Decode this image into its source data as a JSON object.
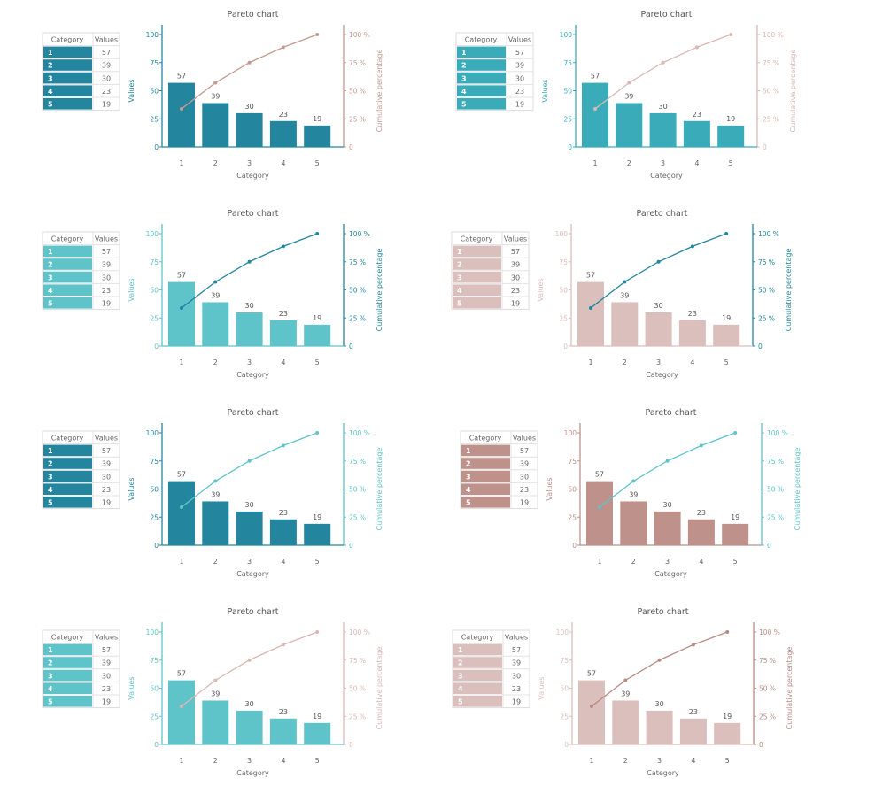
{
  "chart_data": [
    {
      "type": "bar+line",
      "title": "Pareto chart",
      "xlabel": "Category",
      "ylabel": "Values",
      "y2label": "Cumulative percentage",
      "categories": [
        "1",
        "2",
        "3",
        "4",
        "5"
      ],
      "values": [
        57,
        39,
        30,
        23,
        19
      ],
      "cumulative_percent": [
        33.9,
        57.1,
        75.0,
        88.7,
        100
      ],
      "ylim": [
        0,
        100
      ],
      "y2lim": [
        0,
        100
      ],
      "yticks": [
        "0",
        "25",
        "50",
        "75",
        "100"
      ],
      "y2ticks": [
        "0",
        "25 %",
        "50 %",
        "75 %",
        "100 %"
      ],
      "table_headers": [
        "Category",
        "Values"
      ],
      "bar_color": "#23869e",
      "line_color": "#c49a90"
    },
    {
      "type": "bar+line",
      "title": "Pareto chart",
      "xlabel": "Category",
      "ylabel": "Values",
      "y2label": "Cumulative percentage",
      "categories": [
        "1",
        "2",
        "3",
        "4",
        "5"
      ],
      "values": [
        57,
        39,
        30,
        23,
        19
      ],
      "cumulative_percent": [
        33.9,
        57.1,
        75.0,
        88.7,
        100
      ],
      "ylim": [
        0,
        100
      ],
      "y2lim": [
        0,
        100
      ],
      "yticks": [
        "0",
        "25",
        "50",
        "75",
        "100"
      ],
      "y2ticks": [
        "0",
        "25 %",
        "50 %",
        "75 %",
        "100 %"
      ],
      "table_headers": [
        "Category",
        "Values"
      ],
      "bar_color": "#3aabb8",
      "line_color": "#dbb8b3"
    },
    {
      "type": "bar+line",
      "title": "Pareto chart",
      "xlabel": "Category",
      "ylabel": "Values",
      "y2label": "Cumulative percentage",
      "categories": [
        "1",
        "2",
        "3",
        "4",
        "5"
      ],
      "values": [
        57,
        39,
        30,
        23,
        19
      ],
      "cumulative_percent": [
        33.9,
        57.1,
        75.0,
        88.7,
        100
      ],
      "ylim": [
        0,
        100
      ],
      "y2lim": [
        0,
        100
      ],
      "yticks": [
        "0",
        "25",
        "50",
        "75",
        "100"
      ],
      "y2ticks": [
        "0",
        "25 %",
        "50 %",
        "75 %",
        "100 %"
      ],
      "table_headers": [
        "Category",
        "Values"
      ],
      "bar_color": "#5ec4ca",
      "line_color": "#23869e"
    },
    {
      "type": "bar+line",
      "title": "Pareto chart",
      "xlabel": "Category",
      "ylabel": "Values",
      "y2label": "Cumulative percentage",
      "categories": [
        "1",
        "2",
        "3",
        "4",
        "5"
      ],
      "values": [
        57,
        39,
        30,
        23,
        19
      ],
      "cumulative_percent": [
        33.9,
        57.1,
        75.0,
        88.7,
        100
      ],
      "ylim": [
        0,
        100
      ],
      "y2lim": [
        0,
        100
      ],
      "yticks": [
        "0",
        "25",
        "50",
        "75",
        "100"
      ],
      "y2ticks": [
        "0",
        "25 %",
        "50 %",
        "75 %",
        "100 %"
      ],
      "table_headers": [
        "Category",
        "Values"
      ],
      "bar_color": "#dabfbc",
      "line_color": "#23869e"
    },
    {
      "type": "bar+line",
      "title": "Pareto chart",
      "xlabel": "Category",
      "ylabel": "Values",
      "y2label": "Cumulative percentage",
      "categories": [
        "1",
        "2",
        "3",
        "4",
        "5"
      ],
      "values": [
        57,
        39,
        30,
        23,
        19
      ],
      "cumulative_percent": [
        33.9,
        57.1,
        75.0,
        88.7,
        100
      ],
      "ylim": [
        0,
        100
      ],
      "y2lim": [
        0,
        100
      ],
      "yticks": [
        "0",
        "25",
        "50",
        "75",
        "100"
      ],
      "y2ticks": [
        "0",
        "25 %",
        "50 %",
        "75 %",
        "100 %"
      ],
      "table_headers": [
        "Category",
        "Values"
      ],
      "bar_color": "#23869e",
      "line_color": "#5ec4ca"
    },
    {
      "type": "bar+line",
      "title": "Pareto chart",
      "xlabel": "Category",
      "ylabel": "Values",
      "y2label": "Cumulative percentage",
      "categories": [
        "1",
        "2",
        "3",
        "4",
        "5"
      ],
      "values": [
        57,
        39,
        30,
        23,
        19
      ],
      "cumulative_percent": [
        33.9,
        57.1,
        75.0,
        88.7,
        100
      ],
      "ylim": [
        0,
        100
      ],
      "y2lim": [
        0,
        100
      ],
      "yticks": [
        "0",
        "25",
        "50",
        "75",
        "100"
      ],
      "y2ticks": [
        "0",
        "25 %",
        "50 %",
        "75 %",
        "100 %"
      ],
      "table_headers": [
        "Category",
        "Values"
      ],
      "bar_color": "#be918a",
      "line_color": "#5ec4ca"
    },
    {
      "type": "bar+line",
      "title": "Pareto chart",
      "xlabel": "Category",
      "ylabel": "Values",
      "y2label": "Cumulative percentage",
      "categories": [
        "1",
        "2",
        "3",
        "4",
        "5"
      ],
      "values": [
        57,
        39,
        30,
        23,
        19
      ],
      "cumulative_percent": [
        33.9,
        57.1,
        75.0,
        88.7,
        100
      ],
      "ylim": [
        0,
        100
      ],
      "y2lim": [
        0,
        100
      ],
      "yticks": [
        "0",
        "25",
        "50",
        "75",
        "100"
      ],
      "y2ticks": [
        "0",
        "25 %",
        "50 %",
        "75 %",
        "100 %"
      ],
      "table_headers": [
        "Category",
        "Values"
      ],
      "bar_color": "#5ec4ca",
      "line_color": "#dbb8b3"
    },
    {
      "type": "bar+line",
      "title": "Pareto chart",
      "xlabel": "Category",
      "ylabel": "Values",
      "y2label": "Cumulative percentage",
      "categories": [
        "1",
        "2",
        "3",
        "4",
        "5"
      ],
      "values": [
        57,
        39,
        30,
        23,
        19
      ],
      "cumulative_percent": [
        33.9,
        57.1,
        75.0,
        88.7,
        100
      ],
      "ylim": [
        0,
        100
      ],
      "y2lim": [
        0,
        100
      ],
      "yticks": [
        "0",
        "25",
        "50",
        "75",
        "100"
      ],
      "y2ticks": [
        "0",
        "25 %",
        "50 %",
        "75 %",
        "100 %"
      ],
      "table_headers": [
        "Category",
        "Values"
      ],
      "bar_color": "#dabfbc",
      "line_color": "#b88c84"
    }
  ]
}
